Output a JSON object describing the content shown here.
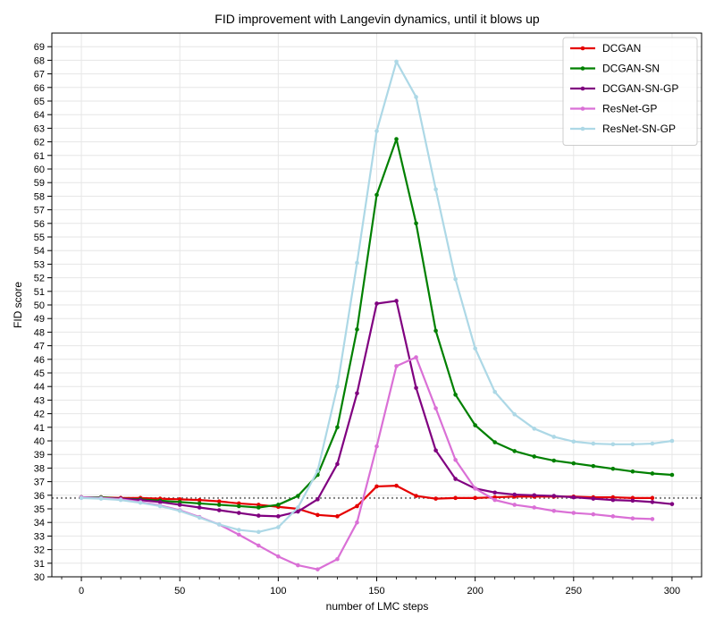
{
  "chart_data": {
    "type": "line",
    "title": "FID improvement with Langevin dynamics, until it blows up",
    "xlabel": "number of LMC steps",
    "ylabel": "FID score",
    "xlim": [
      -15,
      315
    ],
    "ylim": [
      30,
      70
    ],
    "x_ticks": [
      0,
      50,
      100,
      150,
      200,
      250,
      300
    ],
    "y_ticks": [
      30,
      31,
      32,
      33,
      34,
      35,
      36,
      37,
      38,
      39,
      40,
      41,
      42,
      43,
      44,
      45,
      46,
      47,
      48,
      49,
      50,
      51,
      52,
      53,
      54,
      55,
      56,
      57,
      58,
      59,
      60,
      61,
      62,
      63,
      64,
      65,
      66,
      67,
      68,
      69
    ],
    "grid": true,
    "legend_position": "top-right",
    "reference_line": {
      "y": 35.8,
      "color": "#808080",
      "style": "dotted"
    },
    "series": [
      {
        "name": "DCGAN",
        "color": "#e50000",
        "x": [
          0,
          10,
          20,
          30,
          40,
          50,
          60,
          70,
          80,
          90,
          100,
          110,
          120,
          130,
          140,
          150,
          160,
          170,
          180,
          190,
          200,
          210,
          220,
          230,
          240,
          250,
          260,
          270,
          280,
          290
        ],
        "values": [
          35.85,
          35.85,
          35.8,
          35.8,
          35.75,
          35.7,
          35.65,
          35.55,
          35.4,
          35.3,
          35.15,
          35.0,
          34.55,
          34.45,
          35.2,
          36.65,
          36.7,
          35.95,
          35.75,
          35.8,
          35.8,
          35.85,
          35.9,
          35.9,
          35.9,
          35.9,
          35.85,
          35.85,
          35.8,
          35.8
        ]
      },
      {
        "name": "DCGAN-SN",
        "color": "#008000",
        "x": [
          0,
          10,
          20,
          30,
          40,
          50,
          60,
          70,
          80,
          90,
          100,
          110,
          120,
          130,
          140,
          150,
          160,
          170,
          180,
          190,
          200,
          210,
          220,
          230,
          240,
          250,
          260,
          270,
          280,
          290,
          300
        ],
        "values": [
          35.85,
          35.85,
          35.75,
          35.7,
          35.6,
          35.5,
          35.4,
          35.3,
          35.2,
          35.1,
          35.3,
          35.95,
          37.5,
          41.0,
          48.2,
          58.1,
          62.2,
          56.0,
          48.1,
          43.4,
          41.15,
          39.9,
          39.25,
          38.85,
          38.55,
          38.35,
          38.15,
          37.95,
          37.75,
          37.6,
          37.5
        ]
      },
      {
        "name": "DCGAN-SN-GP",
        "color": "#800080",
        "x": [
          0,
          10,
          20,
          30,
          40,
          50,
          60,
          70,
          80,
          90,
          100,
          110,
          120,
          130,
          140,
          150,
          160,
          170,
          180,
          190,
          200,
          210,
          220,
          230,
          240,
          250,
          260,
          270,
          280,
          290,
          300
        ],
        "values": [
          35.85,
          35.8,
          35.75,
          35.65,
          35.5,
          35.3,
          35.1,
          34.9,
          34.7,
          34.5,
          34.45,
          34.8,
          35.7,
          38.3,
          43.5,
          50.1,
          50.3,
          43.9,
          39.3,
          37.2,
          36.5,
          36.2,
          36.05,
          36.0,
          35.95,
          35.85,
          35.75,
          35.65,
          35.6,
          35.5,
          35.35
        ]
      },
      {
        "name": "ResNet-GP",
        "color": "#da70d6",
        "x": [
          0,
          10,
          20,
          30,
          40,
          50,
          60,
          70,
          80,
          90,
          100,
          110,
          120,
          130,
          140,
          150,
          160,
          170,
          180,
          190,
          200,
          210,
          220,
          230,
          240,
          250,
          260,
          270,
          280,
          290
        ],
        "values": [
          35.85,
          35.8,
          35.7,
          35.5,
          35.25,
          34.9,
          34.4,
          33.85,
          33.1,
          32.3,
          31.5,
          30.85,
          30.55,
          31.3,
          34.0,
          39.6,
          45.5,
          46.15,
          42.4,
          38.6,
          36.5,
          35.65,
          35.3,
          35.1,
          34.85,
          34.7,
          34.6,
          34.45,
          34.3,
          34.25
        ]
      },
      {
        "name": "ResNet-SN-GP",
        "color": "#add8e6",
        "x": [
          0,
          10,
          20,
          30,
          40,
          50,
          60,
          70,
          80,
          90,
          100,
          110,
          120,
          130,
          140,
          150,
          160,
          170,
          180,
          190,
          200,
          210,
          220,
          230,
          240,
          250,
          260,
          270,
          280,
          290,
          300
        ],
        "values": [
          35.8,
          35.75,
          35.65,
          35.45,
          35.2,
          34.85,
          34.35,
          33.85,
          33.45,
          33.3,
          33.65,
          35.1,
          37.8,
          44.0,
          53.1,
          62.8,
          67.9,
          65.3,
          58.5,
          51.9,
          46.8,
          43.6,
          41.95,
          40.9,
          40.3,
          39.95,
          39.8,
          39.75,
          39.75,
          39.8,
          40.0
        ]
      }
    ]
  }
}
